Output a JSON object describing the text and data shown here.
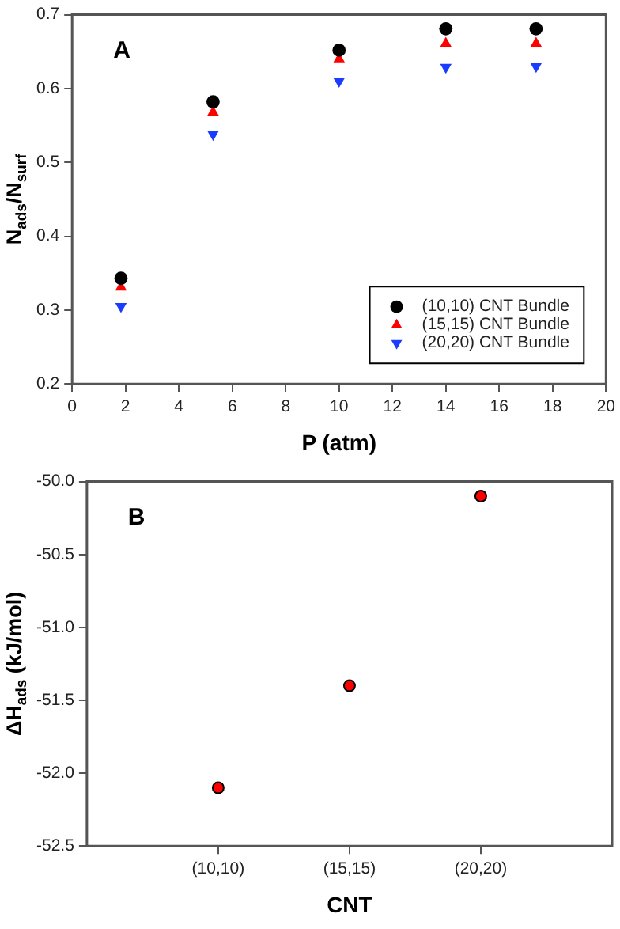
{
  "chart_data": [
    {
      "type": "scatter",
      "xlabel": "P (atm)",
      "ylabel": "N$_{ads}$/N$_{surf}$",
      "annotations": [
        "A"
      ],
      "xlim": [
        0,
        20
      ],
      "xticks": [
        0,
        2,
        4,
        6,
        8,
        10,
        12,
        14,
        16,
        18,
        20
      ],
      "ylim": [
        0.2,
        0.7
      ],
      "yticks": [
        0.2,
        0.3,
        0.4,
        0.5,
        0.6,
        0.7
      ],
      "legend": "bottom right",
      "x": [
        1.83,
        5.28,
        10,
        14,
        17.38
      ],
      "series": [
        {
          "name": "(10,10) CNT Bundle",
          "color": "#000000",
          "marker": "circle",
          "values": [
            0.343,
            0.582,
            0.652,
            0.681,
            0.681
          ]
        },
        {
          "name": "(15,15) CNT Bundle",
          "color": "#ff0000",
          "marker": "triangle",
          "values": [
            0.331,
            0.568,
            0.64,
            0.661,
            0.661
          ]
        },
        {
          "name": "(20,20) CNT Bundle",
          "color": "#1a3cff",
          "marker": "triangle-down",
          "values": [
            0.305,
            0.538,
            0.61,
            0.629,
            0.63
          ]
        }
      ]
    },
    {
      "type": "scatter",
      "xlabel": "CNT",
      "ylabel": "ΔH$_{ads}$ (kJ/mol)",
      "annotations": [
        "B"
      ],
      "categories": [
        "(10,10)",
        "(15,15)",
        "(20,20)"
      ],
      "ylim": [
        -52.5,
        -50
      ],
      "yticks": [
        {
          "value": -52.5,
          "label": "-52.5"
        },
        {
          "value": -52,
          "label": "-52.0"
        },
        {
          "value": -51.5,
          "label": "-51.5"
        },
        {
          "value": -51,
          "label": "-51.0"
        },
        {
          "value": -50.5,
          "label": "-50.5"
        },
        {
          "value": -50,
          "label": "-50.0"
        }
      ],
      "marker": "circle",
      "series": [
        {
          "color": "#ff0000",
          "values": [
            -52.1,
            -51.4,
            -50.1
          ]
        }
      ]
    }
  ]
}
